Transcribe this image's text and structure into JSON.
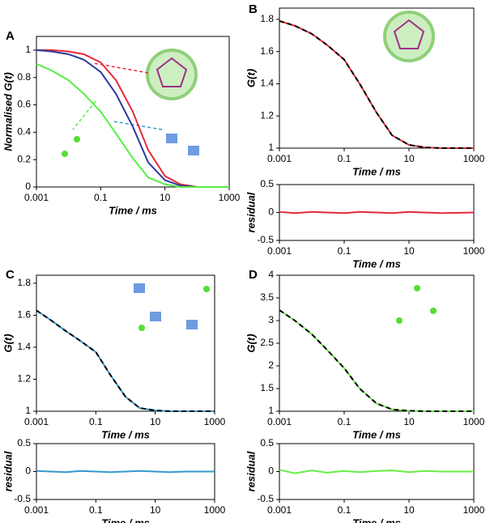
{
  "chart_data": [
    {
      "type": "line",
      "label": "A",
      "xlabel": "Time / ms",
      "ylabel": "Normalised G(t)",
      "log_x": true,
      "xlim": [
        0.001,
        1000
      ],
      "xticks": [
        0.001,
        0.1,
        10,
        1000
      ],
      "ylim": [
        0,
        1.1
      ],
      "yticks": [
        0,
        0.2,
        0.4,
        0.6,
        0.8,
        1
      ],
      "x": [
        0.001,
        0.003,
        0.01,
        0.03,
        0.1,
        0.3,
        1,
        3,
        10,
        30,
        100,
        1000
      ],
      "series": [
        {
          "color": "#e8283a",
          "values": [
            1,
            1,
            0.99,
            0.97,
            0.91,
            0.78,
            0.55,
            0.27,
            0.08,
            0.02,
            0,
            0
          ]
        },
        {
          "color": "#2b3aa0",
          "values": [
            1,
            0.99,
            0.97,
            0.93,
            0.84,
            0.68,
            0.44,
            0.18,
            0.05,
            0.01,
            0,
            0
          ]
        },
        {
          "color": "#55ee44",
          "values": [
            0.9,
            0.85,
            0.78,
            0.68,
            0.55,
            0.39,
            0.21,
            0.07,
            0.02,
            0,
            0,
            0
          ]
        }
      ]
    },
    {
      "type": "line",
      "label": "B",
      "xlabel": "Time / ms",
      "ylabel": "G(t)",
      "log_x": true,
      "xlim": [
        0.001,
        1000
      ],
      "xticks": [
        0.001,
        0.1,
        10,
        1000
      ],
      "ylim": [
        1,
        1.87
      ],
      "yticks": [
        1,
        1.2,
        1.4,
        1.6,
        1.8
      ],
      "x": [
        0.001,
        0.003,
        0.01,
        0.03,
        0.1,
        0.3,
        1,
        3,
        10,
        30,
        100,
        1000
      ],
      "series": [
        {
          "color": "#e8283a",
          "values": [
            1.79,
            1.76,
            1.71,
            1.64,
            1.55,
            1.4,
            1.22,
            1.08,
            1.02,
            1.005,
            1,
            1
          ]
        },
        {
          "color": "#000000",
          "dashed": true,
          "values": [
            1.79,
            1.76,
            1.71,
            1.64,
            1.55,
            1.4,
            1.22,
            1.08,
            1.02,
            1.005,
            1,
            1
          ]
        }
      ]
    },
    {
      "type": "line",
      "xlabel": "Time / ms",
      "ylabel": "residual",
      "log_x": true,
      "xlim": [
        0.001,
        1000
      ],
      "xticks": [
        0.001,
        0.1,
        10,
        1000
      ],
      "ylim": [
        -0.5,
        0.5
      ],
      "yticks": [
        -0.5,
        0,
        0.5
      ],
      "x": [
        0.001,
        0.003,
        0.01,
        0.03,
        0.1,
        0.3,
        1,
        3,
        10,
        30,
        100,
        1000
      ],
      "series": [
        {
          "color": "#e8283a",
          "values": [
            0.01,
            -0.01,
            0.01,
            0,
            -0.01,
            0.01,
            0,
            -0.01,
            0.01,
            0,
            -0.01,
            0
          ]
        }
      ]
    },
    {
      "type": "line",
      "label": "C",
      "xlabel": "Time / ms",
      "ylabel": "G(t)",
      "log_x": true,
      "xlim": [
        0.001,
        1000
      ],
      "xticks": [
        0.001,
        0.1,
        10,
        1000
      ],
      "ylim": [
        1,
        1.85
      ],
      "yticks": [
        1,
        1.2,
        1.4,
        1.6,
        1.8
      ],
      "x": [
        0.001,
        0.003,
        0.01,
        0.03,
        0.1,
        0.3,
        1,
        3,
        10,
        30,
        100,
        1000
      ],
      "series": [
        {
          "color": "#3399cc",
          "values": [
            1.63,
            1.57,
            1.5,
            1.44,
            1.37,
            1.23,
            1.09,
            1.02,
            1.005,
            1,
            1,
            1
          ]
        },
        {
          "color": "#000000",
          "dashed": true,
          "values": [
            1.63,
            1.57,
            1.5,
            1.44,
            1.37,
            1.23,
            1.09,
            1.02,
            1.005,
            1,
            1,
            1
          ]
        }
      ]
    },
    {
      "type": "line",
      "xlabel": "Time / ms",
      "ylabel": "residual",
      "log_x": true,
      "xlim": [
        0.001,
        1000
      ],
      "xticks": [
        0.001,
        0.1,
        10,
        1000
      ],
      "ylim": [
        -0.5,
        0.5
      ],
      "yticks": [
        -0.5,
        0,
        0.5
      ],
      "x": [
        0.001,
        0.003,
        0.01,
        0.03,
        0.1,
        0.3,
        1,
        3,
        10,
        30,
        100,
        1000
      ],
      "series": [
        {
          "color": "#3399cc",
          "values": [
            0.01,
            0,
            -0.01,
            0.01,
            0,
            -0.01,
            0,
            0.01,
            0,
            -0.01,
            0,
            0
          ]
        }
      ]
    },
    {
      "type": "line",
      "label": "D",
      "xlabel": "Time / ms",
      "ylabel": "G(t)",
      "log_x": true,
      "xlim": [
        0.001,
        1000
      ],
      "xticks": [
        0.001,
        0.1,
        10,
        1000
      ],
      "ylim": [
        1,
        4
      ],
      "yticks": [
        1,
        1.5,
        2,
        2.5,
        3,
        3.5,
        4
      ],
      "x": [
        0.001,
        0.003,
        0.01,
        0.03,
        0.1,
        0.3,
        1,
        3,
        10,
        30,
        100,
        1000
      ],
      "series": [
        {
          "color": "#66ee44",
          "values": [
            3.23,
            3,
            2.7,
            2.35,
            1.95,
            1.5,
            1.17,
            1.04,
            1.01,
            1,
            1,
            1
          ]
        },
        {
          "color": "#000000",
          "dashed": true,
          "values": [
            3.23,
            3,
            2.7,
            2.35,
            1.95,
            1.5,
            1.17,
            1.04,
            1.01,
            1,
            1,
            1
          ]
        }
      ]
    },
    {
      "type": "line",
      "xlabel": "Time / ms",
      "ylabel": "residual",
      "log_x": true,
      "xlim": [
        0.001,
        1000
      ],
      "xticks": [
        0.001,
        0.1,
        10,
        1000
      ],
      "ylim": [
        -0.5,
        0.5
      ],
      "yticks": [
        -0.5,
        0,
        0.5
      ],
      "x": [
        0.001,
        0.003,
        0.01,
        0.03,
        0.1,
        0.3,
        1,
        3,
        10,
        30,
        100,
        1000
      ],
      "series": [
        {
          "color": "#66ee44",
          "values": [
            0.03,
            -0.03,
            0.02,
            -0.02,
            0.01,
            -0.01,
            0.01,
            0.02,
            -0.01,
            0.01,
            0,
            0
          ]
        }
      ]
    }
  ]
}
